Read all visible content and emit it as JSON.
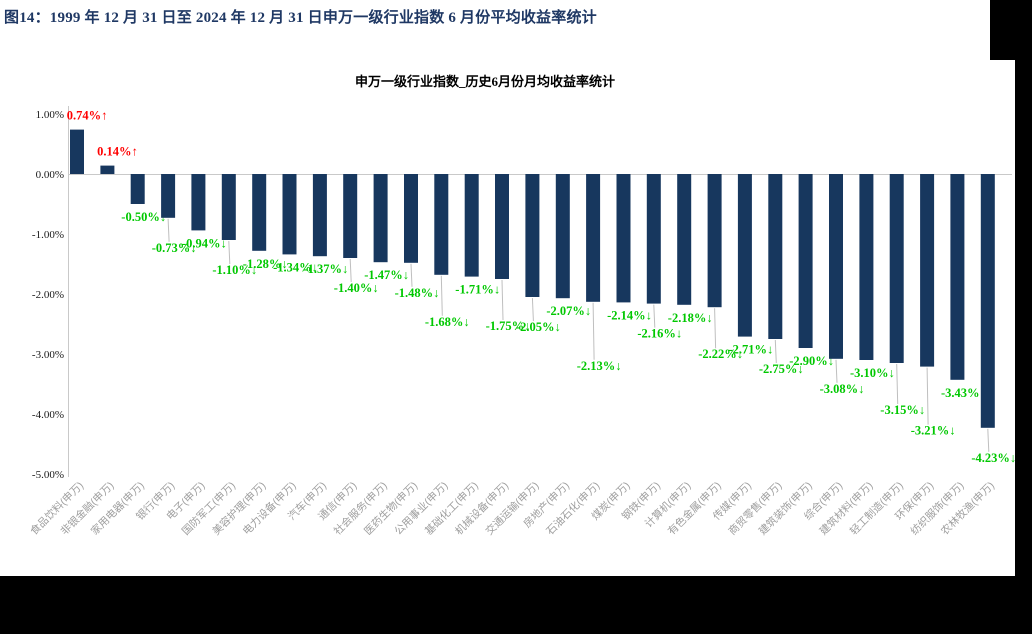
{
  "page": {
    "title": "图14：1999 年 12 月 31 日至 2024 年 12 月 31 日申万一级行业指数 6 月份平均收益率统计"
  },
  "chart_data": {
    "type": "bar",
    "title": "申万一级行业指数_历史6月份月均收益率统计",
    "categories": [
      "食品饮料(申万)",
      "非银金融(申万)",
      "家用电器(申万)",
      "银行(申万)",
      "电子(申万)",
      "国防军工(申万)",
      "美容护理(申万)",
      "电力设备(申万)",
      "汽车(申万)",
      "通信(申万)",
      "社会服务(申万)",
      "医药生物(申万)",
      "公用事业(申万)",
      "基础化工(申万)",
      "机械设备(申万)",
      "交通运输(申万)",
      "房地产(申万)",
      "石油石化(申万)",
      "煤炭(申万)",
      "钢铁(申万)",
      "计算机(申万)",
      "有色金属(申万)",
      "传媒(申万)",
      "商贸零售(申万)",
      "建筑装饰(申万)",
      "综合(申万)",
      "建筑材料(申万)",
      "轻工制造(申万)",
      "环保(申万)",
      "纺织服饰(申万)",
      "农林牧渔(申万)"
    ],
    "values": [
      0.74,
      0.14,
      -0.5,
      -0.73,
      -0.94,
      -1.1,
      -1.28,
      -1.34,
      -1.37,
      -1.4,
      -1.47,
      -1.48,
      -1.68,
      -1.71,
      -1.75,
      -2.05,
      -2.07,
      -2.13,
      -2.14,
      -2.16,
      -2.18,
      -2.22,
      -2.71,
      -2.75,
      -2.9,
      -3.08,
      -3.1,
      -3.15,
      -3.21,
      -3.43,
      -4.23
    ],
    "labels": [
      "0.74%↑",
      "0.14%↑",
      "-0.50%↓",
      "-0.73%↓",
      "-0.94%↓",
      "-1.10%↓",
      "-1.28%↓",
      "-1.34%↓",
      "-1.37%↓",
      "-1.40%↓",
      "-1.47%↓",
      "-1.48%↓",
      "-1.68%↓",
      "-1.71%↓",
      "-1.75%↓",
      "-2.05%↓",
      "-2.07%↓",
      "-2.13%↓",
      "-2.14%↓",
      "-2.16%↓",
      "-2.18%↓",
      "-2.22%↓",
      "-2.71%↓",
      "-2.75%↓",
      "-2.90%↓",
      "-3.08%↓",
      "-3.10%↓",
      "-3.15%↓",
      "-3.21%↓",
      "-3.43%↓",
      "-4.23%↓"
    ],
    "y_ticks": [
      "1.00%",
      "0.00%",
      "-1.00%",
      "-2.00%",
      "-3.00%",
      "-4.00%",
      "-5.00%"
    ],
    "ylim": [
      -5,
      1
    ],
    "xlabel": "",
    "ylabel": "",
    "grid": "zero-line-only",
    "legend": "none",
    "colors": {
      "bar": "#17375E",
      "positive_label": "#FF0000",
      "negative_label": "#00C800",
      "axis_line": "#C9C9C9",
      "leader_line": "#BFBFBF",
      "category_label": "#9E9E9E",
      "doc_title": "#1F3864"
    },
    "layout": {
      "label_tiers": [
        0,
        0,
        0,
        1,
        0,
        1,
        0,
        0,
        0,
        1,
        0,
        1,
        2,
        0,
        2,
        1,
        0,
        3,
        0,
        1,
        0,
        2,
        0,
        1,
        0,
        1,
        0,
        2,
        3,
        0,
        1
      ]
    }
  }
}
